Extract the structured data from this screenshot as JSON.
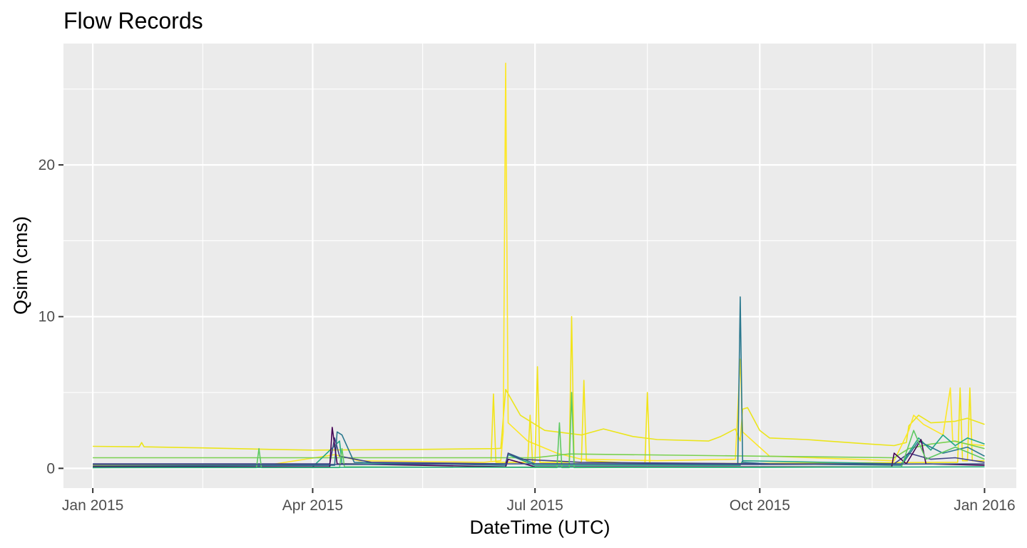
{
  "chart_data": {
    "type": "line",
    "title": "Flow Records",
    "xlabel": "DateTime (UTC)",
    "ylabel": "Qsim (cms)",
    "x_type": "date",
    "xlim": [
      "2014-12-20",
      "2016-01-14"
    ],
    "ylim": [
      -1.3,
      28
    ],
    "x_ticks": [
      {
        "label": "Jan 2015",
        "date": "2015-01-01"
      },
      {
        "label": "Apr 2015",
        "date": "2015-04-01"
      },
      {
        "label": "Jul 2015",
        "date": "2015-07-01"
      },
      {
        "label": "Oct 2015",
        "date": "2015-10-01"
      },
      {
        "label": "Jan 2016",
        "date": "2016-01-01"
      }
    ],
    "x_minor_ticks": [
      "2015-02-15",
      "2015-05-16",
      "2015-08-16",
      "2015-11-16"
    ],
    "y_ticks": [
      0,
      10,
      20
    ],
    "y_minor_ticks": [
      5,
      15,
      25
    ],
    "grid": true,
    "legend": "none",
    "background": "#ebebeb",
    "grid_color": "#ffffff",
    "series": [
      {
        "color": "#ebe51a",
        "points": [
          [
            "2015-01-01",
            1.45
          ],
          [
            "2015-01-20",
            1.42
          ],
          [
            "2015-01-21",
            1.7
          ],
          [
            "2015-01-22",
            1.42
          ],
          [
            "2015-02-15",
            1.35
          ],
          [
            "2015-03-15",
            1.25
          ],
          [
            "2015-04-01",
            1.2
          ],
          [
            "2015-05-15",
            1.25
          ],
          [
            "2015-06-15",
            1.3
          ],
          [
            "2015-06-17",
            1.32
          ],
          [
            "2015-06-19",
            5.2
          ],
          [
            "2015-06-25",
            3.5
          ],
          [
            "2015-07-05",
            2.5
          ],
          [
            "2015-07-20",
            2.2
          ],
          [
            "2015-07-29",
            2.6
          ],
          [
            "2015-08-10",
            2.1
          ],
          [
            "2015-08-20",
            1.9
          ],
          [
            "2015-09-10",
            1.8
          ],
          [
            "2015-09-15",
            2.1
          ],
          [
            "2015-09-21",
            2.6
          ],
          [
            "2015-09-23",
            1.8
          ],
          [
            "2015-09-24",
            3.9
          ],
          [
            "2015-09-26",
            4.0
          ],
          [
            "2015-10-01",
            2.5
          ],
          [
            "2015-10-05",
            2.0
          ],
          [
            "2015-10-20",
            1.9
          ],
          [
            "2015-11-15",
            1.6
          ],
          [
            "2015-11-25",
            1.5
          ],
          [
            "2015-11-30",
            1.7
          ],
          [
            "2015-12-01",
            2.8
          ],
          [
            "2015-12-05",
            3.5
          ],
          [
            "2015-12-10",
            3.0
          ],
          [
            "2015-12-20",
            3.1
          ],
          [
            "2015-12-25",
            3.3
          ],
          [
            "2016-01-01",
            2.9
          ]
        ]
      },
      {
        "color": "#fde725",
        "points": [
          [
            "2015-01-01",
            0.2
          ],
          [
            "2015-03-15",
            0.25
          ],
          [
            "2015-04-10",
            0.9
          ],
          [
            "2015-04-20",
            0.5
          ],
          [
            "2015-06-10",
            0.4
          ],
          [
            "2015-06-17",
            0.5
          ],
          [
            "2015-06-18",
            2.4
          ],
          [
            "2015-06-19",
            26.7
          ],
          [
            "2015-06-20",
            3.0
          ],
          [
            "2015-06-28",
            1.8
          ],
          [
            "2015-07-10",
            1.0
          ],
          [
            "2015-07-20",
            0.6
          ],
          [
            "2015-08-20",
            0.5
          ],
          [
            "2015-09-21",
            0.6
          ],
          [
            "2015-09-23",
            7.2
          ],
          [
            "2015-09-24",
            2.4
          ],
          [
            "2015-10-05",
            0.8
          ],
          [
            "2015-11-25",
            0.5
          ],
          [
            "2015-12-01",
            2.5
          ],
          [
            "2015-12-03",
            3.5
          ],
          [
            "2015-12-07",
            2.9
          ],
          [
            "2015-12-15",
            2.2
          ],
          [
            "2015-12-18",
            5.3
          ],
          [
            "2015-12-19",
            1.8
          ],
          [
            "2015-12-25",
            1.6
          ],
          [
            "2016-01-01",
            1.5
          ]
        ]
      },
      {
        "color": "#f2e418",
        "points": [
          [
            "2015-06-13",
            0.5
          ],
          [
            "2015-06-14",
            4.9
          ],
          [
            "2015-06-15",
            0.4
          ],
          [
            "2015-06-28",
            0.4
          ],
          [
            "2015-06-29",
            3.5
          ],
          [
            "2015-06-30",
            0.4
          ],
          [
            "2015-07-01",
            0.4
          ],
          [
            "2015-07-02",
            6.7
          ],
          [
            "2015-07-03",
            0.4
          ],
          [
            "2015-07-15",
            0.4
          ],
          [
            "2015-07-16",
            10.0
          ],
          [
            "2015-07-17",
            0.4
          ],
          [
            "2015-07-20",
            0.4
          ],
          [
            "2015-07-21",
            5.8
          ],
          [
            "2015-07-22",
            0.5
          ],
          [
            "2015-08-15",
            0.3
          ],
          [
            "2015-08-16",
            5.0
          ],
          [
            "2015-08-17",
            0.3
          ],
          [
            "2015-12-21",
            0.4
          ],
          [
            "2015-12-22",
            5.3
          ],
          [
            "2015-12-23",
            0.5
          ],
          [
            "2015-12-25",
            0.5
          ],
          [
            "2015-12-26",
            5.3
          ],
          [
            "2015-12-27",
            0.5
          ],
          [
            "2016-01-01",
            0.5
          ]
        ]
      },
      {
        "color": "#7ad151",
        "points": [
          [
            "2015-01-01",
            0.7
          ],
          [
            "2015-04-01",
            0.7
          ],
          [
            "2015-07-01",
            0.7
          ],
          [
            "2015-07-15",
            0.95
          ],
          [
            "2015-10-01",
            0.8
          ],
          [
            "2015-11-25",
            0.7
          ],
          [
            "2015-12-01",
            1.3
          ],
          [
            "2015-12-10",
            1.6
          ],
          [
            "2015-12-20",
            1.8
          ],
          [
            "2016-01-01",
            1.3
          ]
        ]
      },
      {
        "color": "#22a884",
        "points": [
          [
            "2015-01-01",
            0.05
          ],
          [
            "2015-04-01",
            0.1
          ],
          [
            "2015-04-12",
            1.8
          ],
          [
            "2015-04-13",
            0.3
          ],
          [
            "2015-06-19",
            0.3
          ],
          [
            "2015-06-20",
            0.9
          ],
          [
            "2015-07-01",
            0.2
          ],
          [
            "2015-09-23",
            0.2
          ],
          [
            "2015-09-24",
            0.5
          ],
          [
            "2015-11-28",
            0.3
          ],
          [
            "2015-12-05",
            2.0
          ],
          [
            "2015-12-10",
            1.2
          ],
          [
            "2015-12-15",
            2.2
          ],
          [
            "2015-12-20",
            1.5
          ],
          [
            "2015-12-25",
            2.0
          ],
          [
            "2016-01-01",
            1.6
          ]
        ]
      },
      {
        "color": "#2a788e",
        "points": [
          [
            "2015-01-01",
            0.15
          ],
          [
            "2015-04-10",
            0.2
          ],
          [
            "2015-04-11",
            2.4
          ],
          [
            "2015-04-13",
            2.2
          ],
          [
            "2015-04-18",
            0.4
          ],
          [
            "2015-06-19",
            0.2
          ],
          [
            "2015-06-20",
            1.0
          ],
          [
            "2015-07-01",
            0.3
          ],
          [
            "2015-09-22",
            0.3
          ],
          [
            "2015-09-23",
            11.3
          ],
          [
            "2015-09-24",
            0.4
          ],
          [
            "2015-10-05",
            0.3
          ],
          [
            "2015-11-28",
            0.2
          ],
          [
            "2015-12-05",
            1.8
          ],
          [
            "2015-12-15",
            1.0
          ],
          [
            "2015-12-25",
            1.4
          ],
          [
            "2016-01-01",
            0.8
          ]
        ]
      },
      {
        "color": "#414487",
        "points": [
          [
            "2015-01-01",
            0.3
          ],
          [
            "2015-04-08",
            0.3
          ],
          [
            "2015-04-10",
            2.0
          ],
          [
            "2015-04-12",
            0.8
          ],
          [
            "2015-04-25",
            0.4
          ],
          [
            "2015-06-19",
            0.3
          ],
          [
            "2015-06-20",
            1.0
          ],
          [
            "2015-06-25",
            0.6
          ],
          [
            "2015-07-20",
            0.4
          ],
          [
            "2015-10-01",
            0.3
          ],
          [
            "2015-11-25",
            0.3
          ],
          [
            "2015-12-01",
            1.0
          ],
          [
            "2015-12-10",
            0.6
          ],
          [
            "2015-12-20",
            0.7
          ],
          [
            "2016-01-01",
            0.4
          ]
        ]
      },
      {
        "color": "#440154",
        "points": [
          [
            "2015-01-01",
            0.1
          ],
          [
            "2015-04-08",
            0.1
          ],
          [
            "2015-04-09",
            2.7
          ],
          [
            "2015-04-11",
            0.3
          ],
          [
            "2015-06-19",
            0.1
          ],
          [
            "2015-06-20",
            0.6
          ],
          [
            "2015-07-01",
            0.1
          ],
          [
            "2015-11-24",
            0.1
          ],
          [
            "2015-11-25",
            1.0
          ],
          [
            "2015-11-30",
            0.3
          ],
          [
            "2015-12-06",
            1.9
          ],
          [
            "2015-12-08",
            0.3
          ],
          [
            "2016-01-01",
            0.2
          ]
        ]
      },
      {
        "color": "#5ec962",
        "points": [
          [
            "2015-01-01",
            0.05
          ],
          [
            "2015-03-09",
            0.05
          ],
          [
            "2015-03-10",
            1.3
          ],
          [
            "2015-03-11",
            0.05
          ],
          [
            "2015-04-12",
            0.05
          ],
          [
            "2015-04-13",
            1.3
          ],
          [
            "2015-04-14",
            0.1
          ],
          [
            "2015-07-10",
            0.05
          ],
          [
            "2015-07-11",
            3.0
          ],
          [
            "2015-07-12",
            0.05
          ],
          [
            "2015-07-15",
            0.05
          ],
          [
            "2015-07-16",
            5.0
          ],
          [
            "2015-07-17",
            0.05
          ],
          [
            "2015-11-28",
            0.1
          ],
          [
            "2015-12-03",
            2.5
          ],
          [
            "2015-12-08",
            0.6
          ],
          [
            "2015-12-20",
            1.4
          ],
          [
            "2016-01-01",
            0.6
          ]
        ]
      },
      {
        "color": "#3b528b",
        "points": [
          [
            "2015-01-01",
            0.25
          ],
          [
            "2015-04-01",
            0.25
          ],
          [
            "2015-07-01",
            0.3
          ],
          [
            "2015-10-01",
            0.25
          ],
          [
            "2016-01-01",
            0.3
          ]
        ]
      },
      {
        "color": "#2ab07f",
        "points": [
          [
            "2015-01-01",
            0.05
          ],
          [
            "2015-04-01",
            0.06
          ],
          [
            "2015-07-01",
            0.08
          ],
          [
            "2015-10-01",
            0.06
          ],
          [
            "2016-01-01",
            0.1
          ]
        ]
      }
    ]
  }
}
